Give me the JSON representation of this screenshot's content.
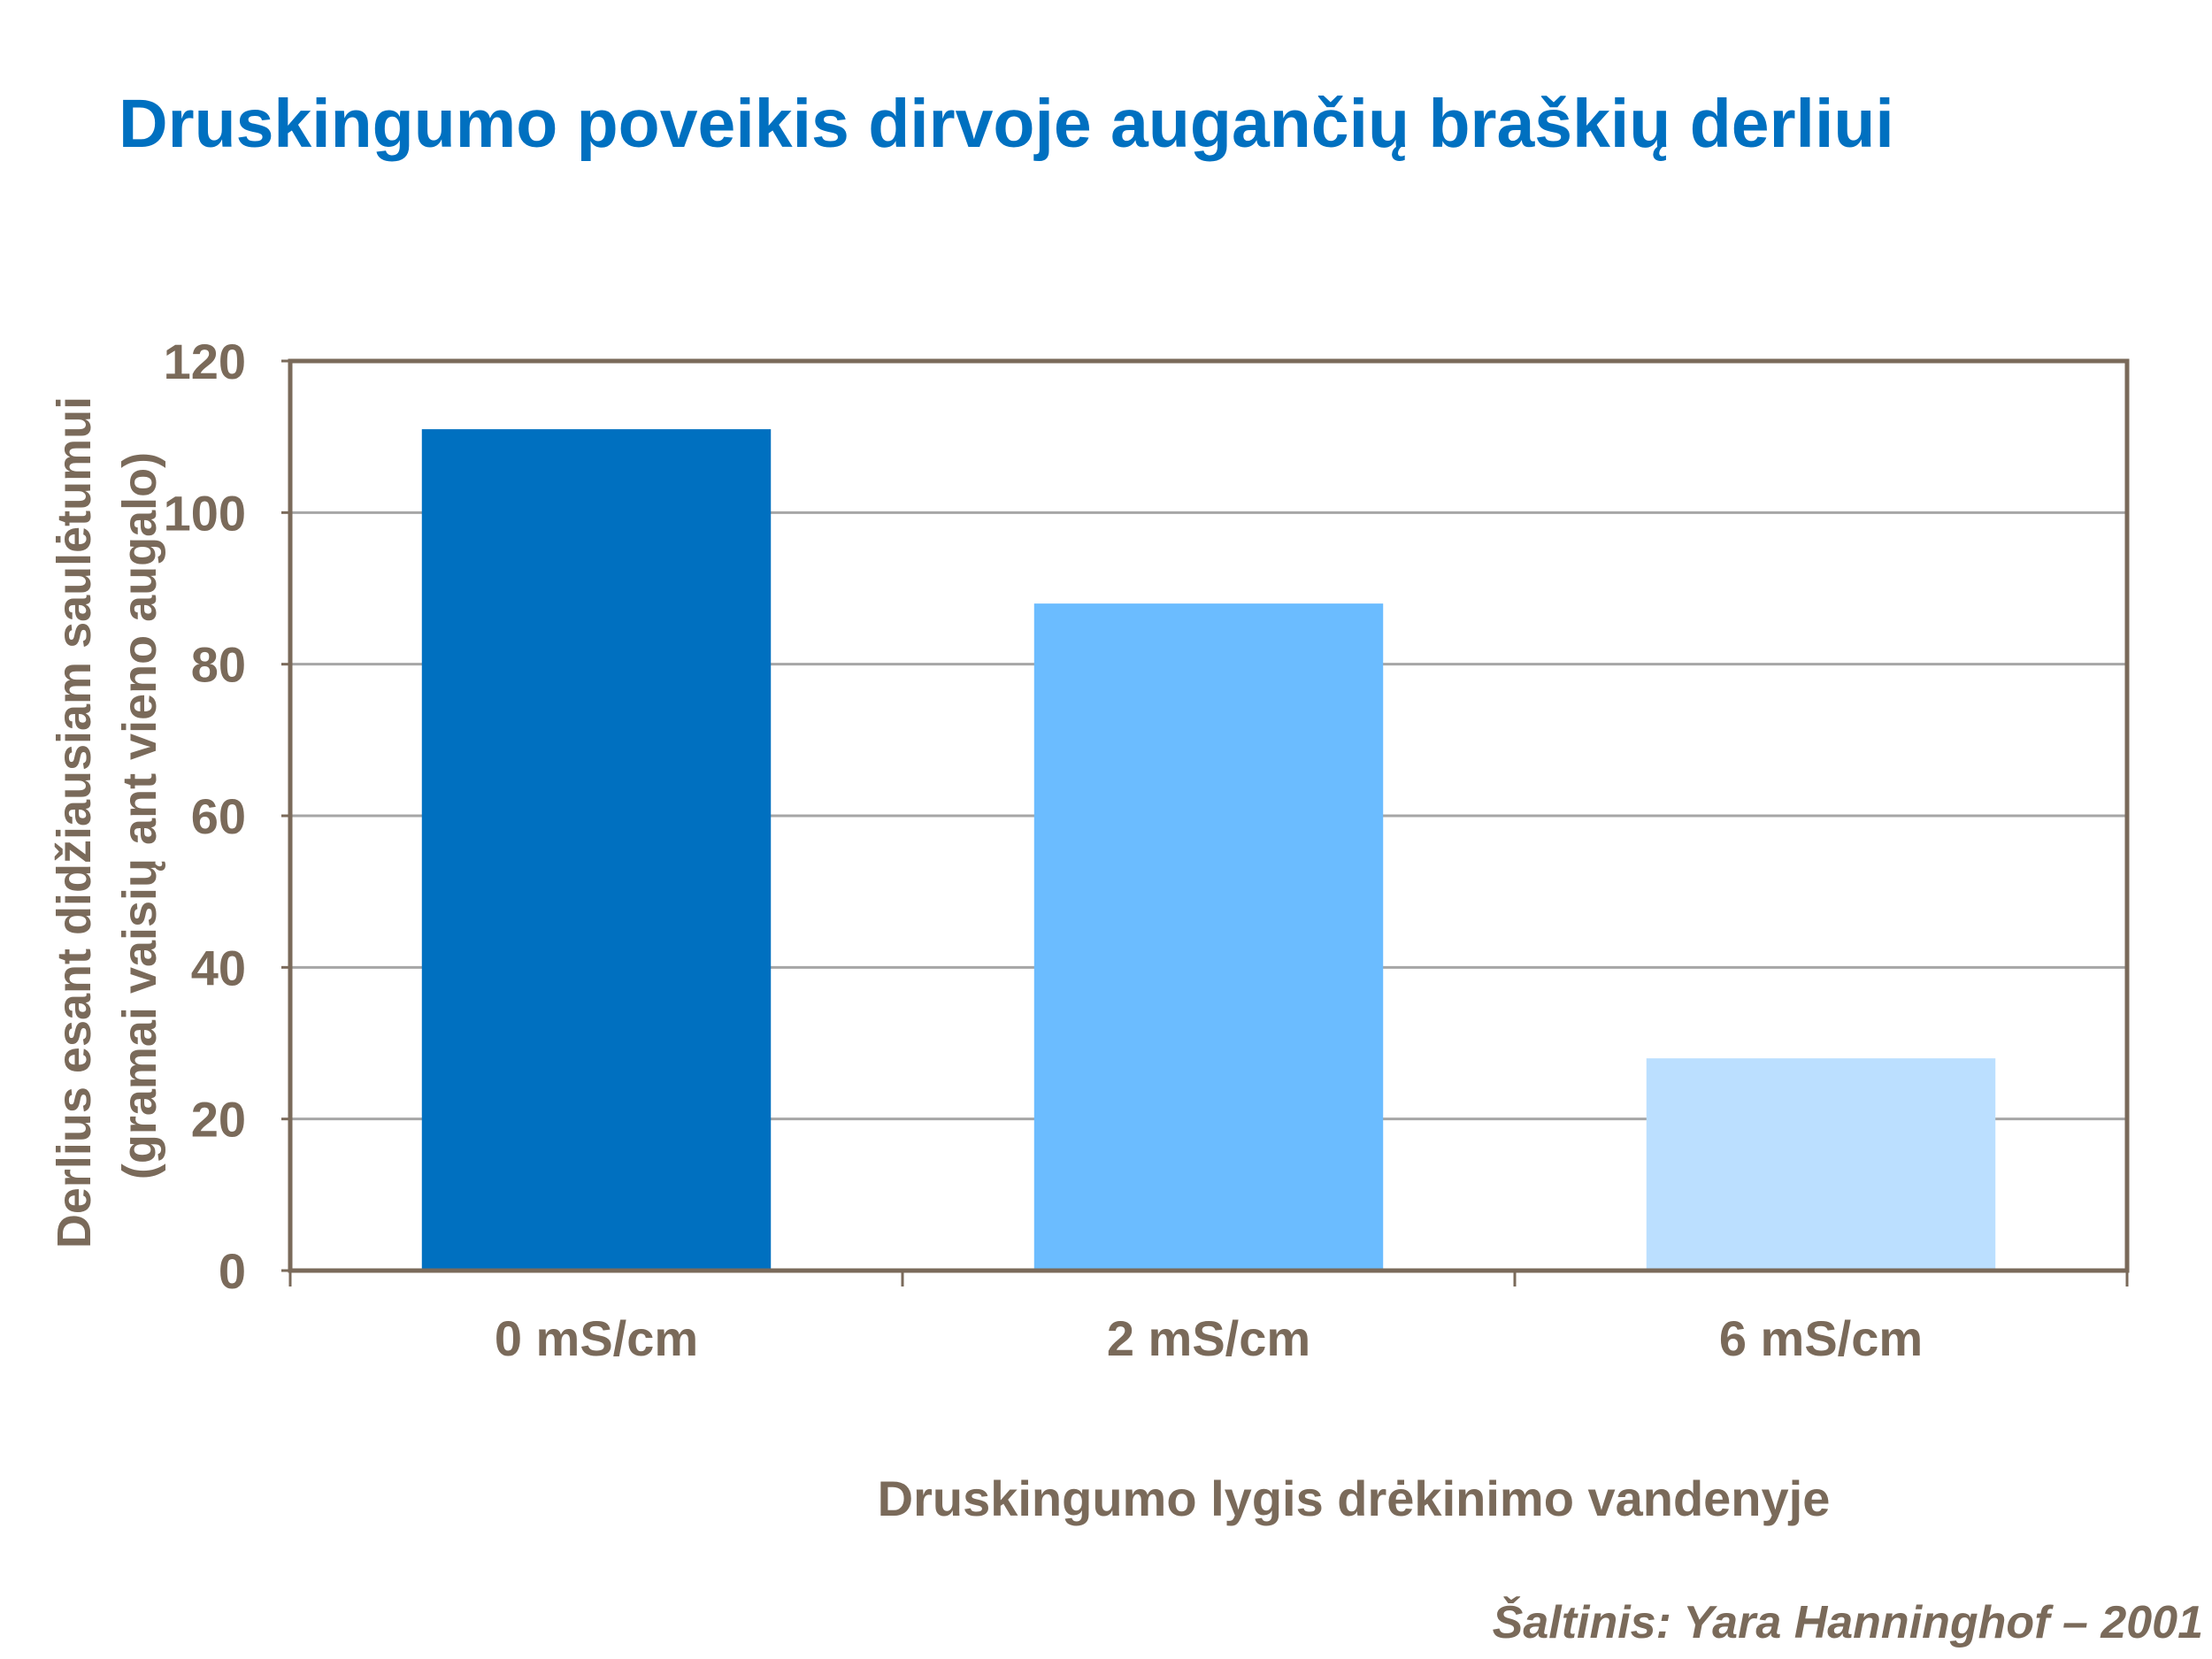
{
  "slide": {
    "title": "Druskingumo poveikis dirvoje augančių braškių derliui",
    "source": "Šaltinis: Yara Hanninghof – 2001"
  },
  "colors": {
    "title": "#0070C0",
    "text": "#7A6A5A",
    "frame": "#7A6A5A",
    "grid": "#A6A6A6"
  },
  "chart_data": {
    "type": "bar",
    "title": "",
    "categories": [
      "0 mS/cm",
      "2 mS/cm",
      "6 mS/cm"
    ],
    "values": [
      111,
      88,
      28
    ],
    "bar_colors": [
      "#0070C0",
      "#6BBCFF",
      "#BBDFFF"
    ],
    "xlabel": "Druskingumo lygis drėkinimo vandenyje",
    "ylabel_lines": [
      "Derlius esant didžiausiam saulėtumui",
      "(gramai vaisių ant vieno augalo)"
    ],
    "ylim": [
      0,
      120
    ],
    "yticks": [
      0,
      20,
      40,
      60,
      80,
      100,
      120
    ],
    "grid": true,
    "legend": "none"
  }
}
